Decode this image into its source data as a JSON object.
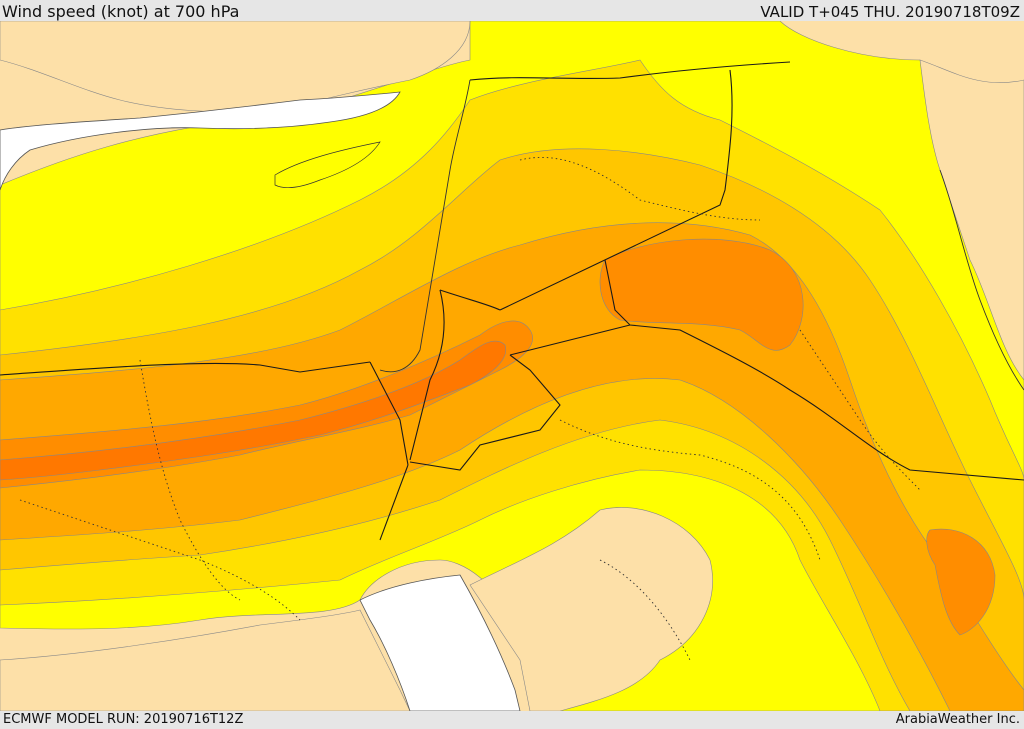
{
  "header": {
    "title": "Wind speed (knot) at 700 hPa",
    "valid_time": "VALID T+045 THU. 20190718T09Z"
  },
  "footer": {
    "model_run": "ECMWF MODEL RUN: 20190716T12Z",
    "credit": "ArabiaWeather Inc."
  },
  "colors": {
    "land_base": "#fde0a8",
    "sea": "#ffffff",
    "band_1": "#ffff00",
    "band_2": "#ffe100",
    "band_3": "#ffc600",
    "band_4": "#ffa800",
    "band_5": "#ff8d00",
    "band_6": "#ff7800",
    "border": "#1a1a1a"
  }
}
